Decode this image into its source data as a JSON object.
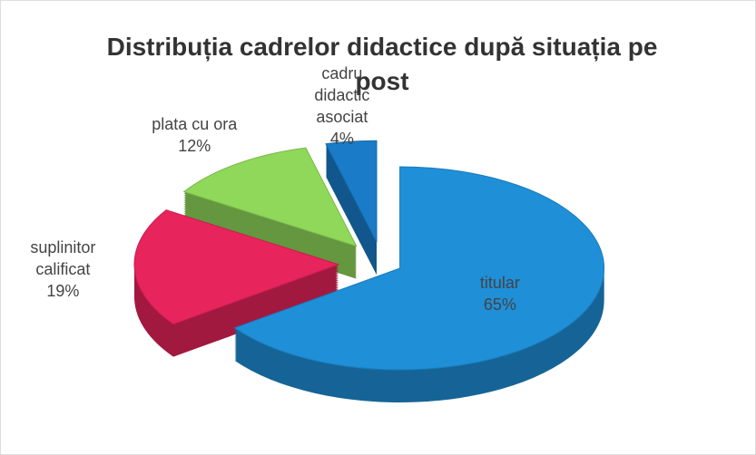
{
  "chart_data": {
    "type": "pie",
    "title": "Distribuția cadrelor didactice după situația pe post",
    "categories": [
      "titular",
      "suplinitor calificat",
      "plata cu ora",
      "cadru didactic asociat"
    ],
    "values": [
      65,
      19,
      12,
      4
    ],
    "value_labels": [
      "65%",
      "19%",
      "12%",
      "4%"
    ],
    "colors": [
      "#1f8fd8",
      "#e8245c",
      "#8fd85a",
      "#1a7cc8"
    ]
  }
}
